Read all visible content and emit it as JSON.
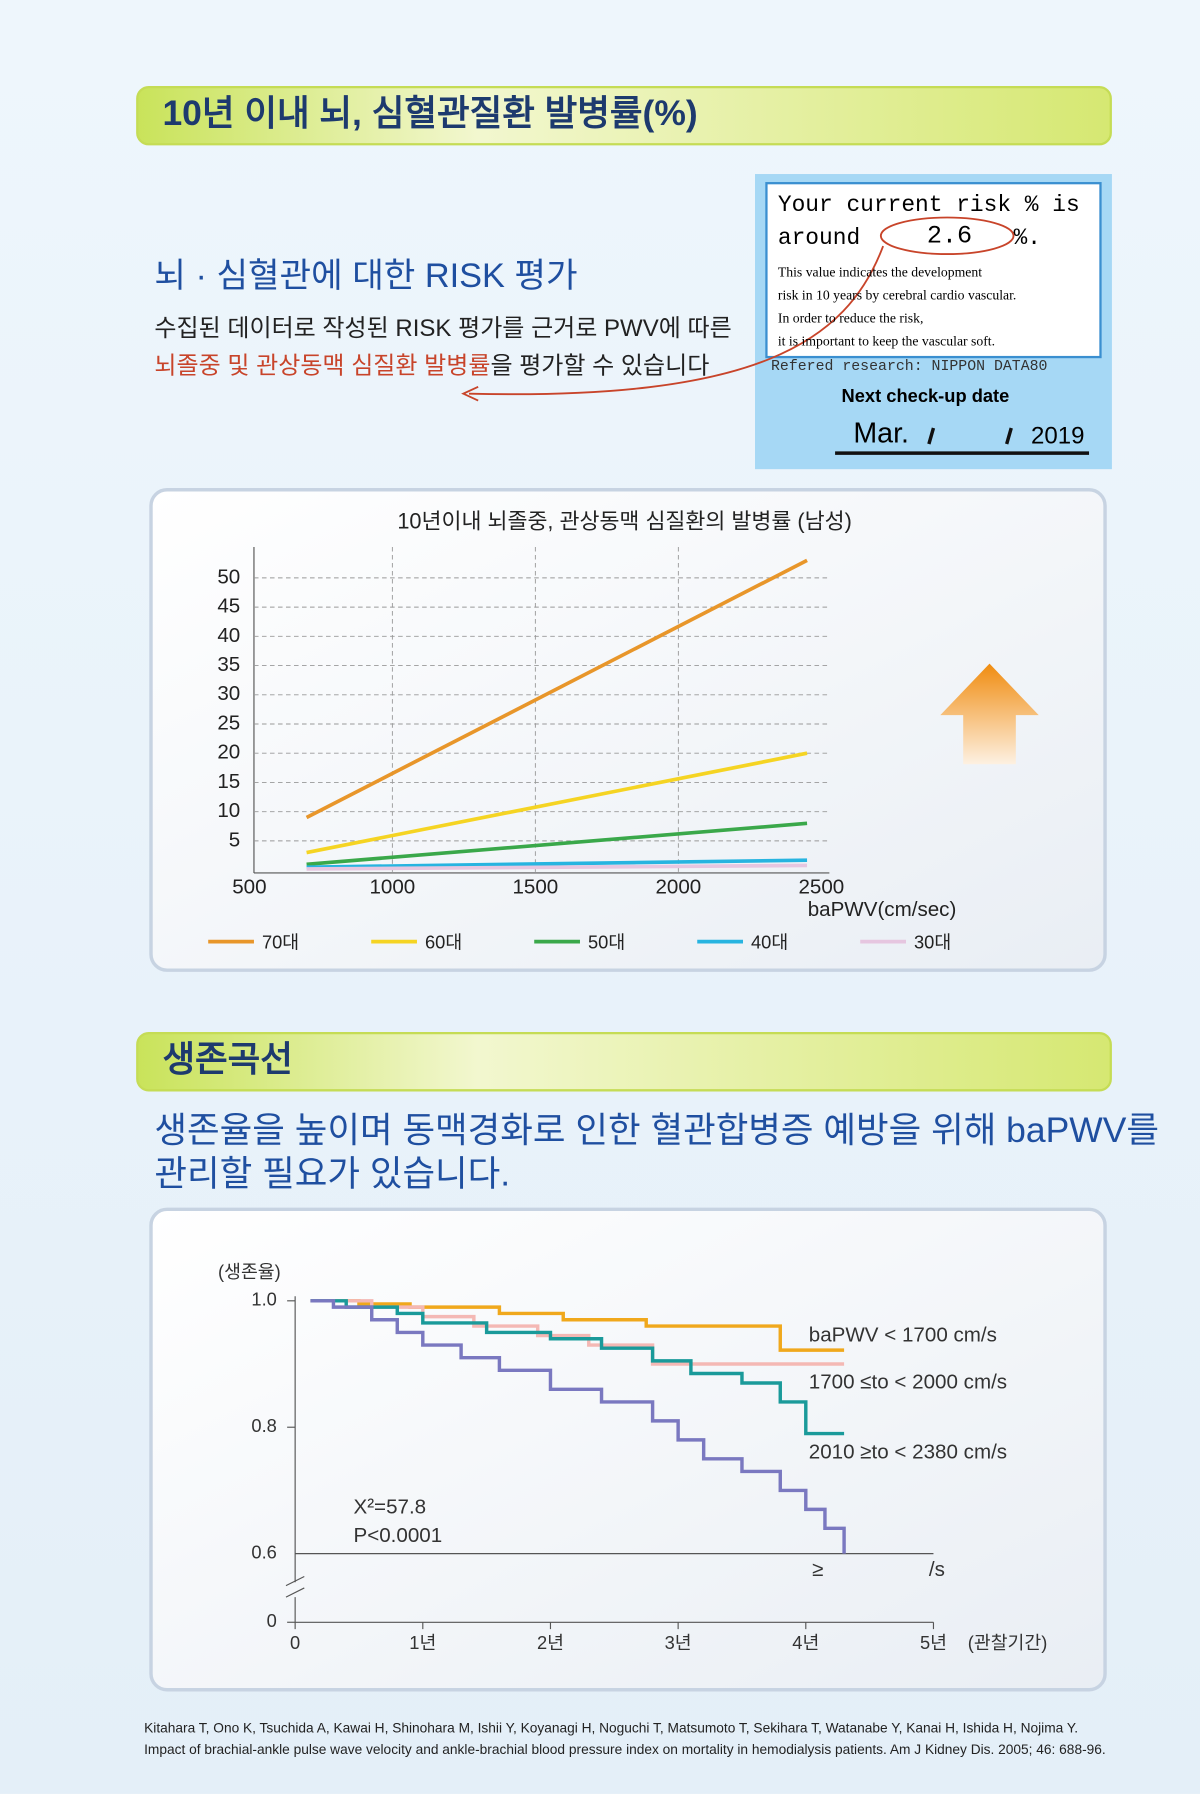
{
  "section1": {
    "title": "10년 이내 뇌, 심혈관질환 발병률(%)",
    "heading": "뇌 · 심혈관에 대한 RISK 평가",
    "description": [
      "수집된 데이터로 작성된 RISK 평가를 근거로 PWV에 따른"
    ],
    "highlight": "뇌졸중 및 관상동맥 심질환 발병률",
    "description_end": "을 평가할 수 있습니다"
  },
  "risk_card": {
    "line1": "Your current risk % is",
    "around": "around",
    "risk": 2.6,
    "unit": "%.",
    "notes": [
      "This value indicates the development",
      "risk in 10 years by cerebral cardio vascular.",
      "In order to reduce the risk,",
      "it is important to keep the vascular soft."
    ],
    "reference": "Refered research: NIPPON DATA80",
    "next_label": "Next check-up date",
    "month": "Mar.",
    "year": 2019
  },
  "section2": {
    "title": "생존곡선",
    "headline": [
      "생존율을 높이며 동맥경화로 인한 혈관합병증 예방을 위해 baPWV를",
      "관리할 필요가 있습니다."
    ]
  },
  "citation": [
    "Kitahara T, Ono K, Tsuchida A, Kawai H, Shinohara M, Ishii Y, Koyanagi H, Noguchi T, Matsumoto T, Sekihara T, Watanabe Y, Kanai H, Ishida H, Nojima Y.",
    "Impact of brachial-ankle pulse wave velocity and ankle-brachial blood pressure index on mortality in hemodialysis patients. Am J Kidney Dis. 2005; 46: 688-96."
  ],
  "chart_data": [
    {
      "type": "line",
      "title": "10년이내 뇌졸중, 관상동맥 심질환의 발병률 (남성)",
      "x_label": "baPWV(cm/sec)",
      "x": [
        700,
        2450
      ],
      "xlim": [
        500,
        2500
      ],
      "xticks": [
        500,
        1000,
        1500,
        2000,
        2500
      ],
      "ylim": [
        0,
        55
      ],
      "yticks": [
        5,
        10,
        15,
        20,
        25,
        30,
        35,
        40,
        45,
        50
      ],
      "grid": true,
      "legend": "bottom",
      "series": [
        {
          "name": "70대",
          "color": "#e8962a",
          "values": [
            9,
            53
          ]
        },
        {
          "name": "60대",
          "color": "#f5d423",
          "values": [
            3,
            20
          ]
        },
        {
          "name": "50대",
          "color": "#3aa84a",
          "values": [
            1,
            8
          ]
        },
        {
          "name": "40대",
          "color": "#27b4e0",
          "values": [
            0.5,
            1.7
          ]
        },
        {
          "name": "30대",
          "color": "#e6c6e0",
          "values": [
            0.2,
            0.8
          ]
        }
      ]
    },
    {
      "type": "step",
      "y_label": "(생존율)",
      "x_label": "(관찰기간)",
      "xlim": [
        0,
        5
      ],
      "xticks": [
        0,
        {
          "value": 1,
          "label": "1년"
        },
        {
          "value": 2,
          "label": "2년"
        },
        {
          "value": 3,
          "label": "3년"
        },
        {
          "value": 4,
          "label": "4년"
        },
        {
          "value": 5,
          "label": "5년"
        }
      ],
      "ylim": [
        0,
        1
      ],
      "y_break": [
        0,
        0.6
      ],
      "yticks": [
        {
          "value": 1,
          "label": "1.0"
        },
        0.8,
        0.6,
        0
      ],
      "annotations": [
        "X²=57.8",
        "P<0.0001",
        "≥",
        "/s"
      ],
      "series": [
        {
          "name": "baPWV < 1700 cm/s",
          "color": "#f0a81c",
          "x": [
            0.12,
            0.5,
            0.9,
            1.6,
            2.1,
            2.75,
            3.8,
            4.3
          ],
          "values": [
            1.0,
            0.995,
            0.99,
            0.98,
            0.97,
            0.96,
            0.922,
            0.922
          ]
        },
        {
          "name": "1700 ≤to < 2000 cm/s",
          "color": "#f4b8b4",
          "x": [
            0.12,
            0.6,
            1.0,
            1.4,
            1.9,
            2.3,
            2.8,
            4.3
          ],
          "values": [
            1.0,
            0.99,
            0.975,
            0.96,
            0.945,
            0.93,
            0.9,
            0.9
          ]
        },
        {
          "name": "2010 ≥to < 2380 cm/s",
          "color": "#1a9a9a",
          "x": [
            0.12,
            0.4,
            0.8,
            1.0,
            1.5,
            2.0,
            2.4,
            2.8,
            3.1,
            3.5,
            3.8,
            4.0,
            4.3
          ],
          "values": [
            1.0,
            0.99,
            0.98,
            0.965,
            0.95,
            0.94,
            0.925,
            0.905,
            0.885,
            0.87,
            0.84,
            0.79,
            0.79
          ]
        },
        {
          "color": "#7a78c0",
          "x": [
            0.12,
            0.3,
            0.6,
            0.8,
            1.0,
            1.3,
            1.6,
            2.0,
            2.4,
            2.8,
            3.0,
            3.2,
            3.5,
            3.8,
            4.0,
            4.15,
            4.3
          ],
          "values": [
            1.0,
            0.99,
            0.97,
            0.95,
            0.93,
            0.91,
            0.89,
            0.86,
            0.84,
            0.81,
            0.78,
            0.75,
            0.73,
            0.7,
            0.67,
            0.64,
            0.6
          ]
        }
      ]
    }
  ]
}
